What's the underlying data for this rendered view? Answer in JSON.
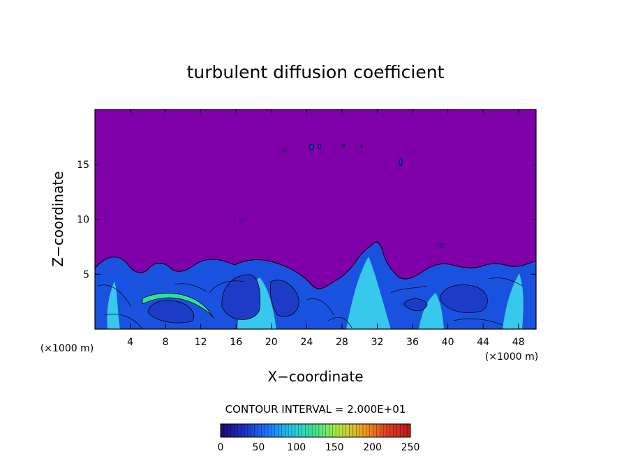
{
  "chart_data": {
    "type": "heatmap",
    "title": "turbulent diffusion coefficient",
    "xlabel": "X−coordinate",
    "ylabel": "Z−coordinate",
    "x_unit_left": "(×1000 m)",
    "x_unit_right": "(×1000 m)",
    "xlim": [
      0,
      50
    ],
    "ylim": [
      0,
      20
    ],
    "x_ticks": [
      4,
      8,
      12,
      16,
      20,
      24,
      28,
      32,
      36,
      40,
      44,
      48
    ],
    "y_ticks": [
      5,
      10,
      15
    ],
    "background_value": 0,
    "background_color": "#7f00a8",
    "contour_interval_text": "CONTOUR INTERVAL = 2.000E+01",
    "colorbar": {
      "min": 0,
      "max": 250,
      "ticks": [
        0,
        50,
        100,
        150,
        200,
        250
      ],
      "colors": [
        "#1e0a6e",
        "#2030c8",
        "#1a78ff",
        "#22c8e6",
        "#40e890",
        "#b8e840",
        "#f0a020",
        "#e04020",
        "#c01818"
      ]
    }
  }
}
